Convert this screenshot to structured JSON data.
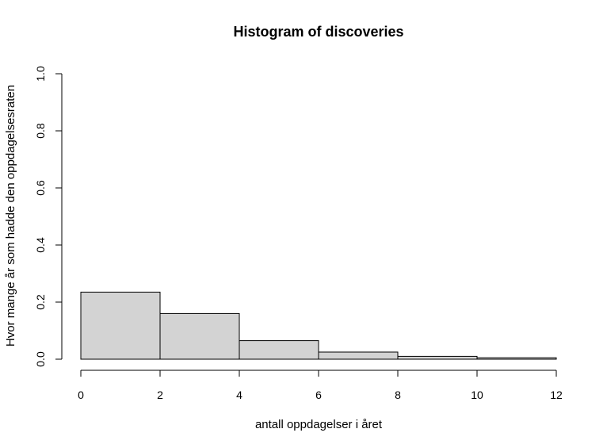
{
  "chart_data": {
    "type": "bar",
    "title": "Histogram of discoveries",
    "xlabel": "antall oppdagelser i året",
    "ylabel": "Hvor mange år som hadde den oppdagelsesraten",
    "bin_edges": [
      0,
      2,
      4,
      6,
      8,
      10,
      12
    ],
    "values": [
      0.235,
      0.16,
      0.065,
      0.025,
      0.01,
      0.005
    ],
    "xlim": [
      0,
      12
    ],
    "ylim": [
      0,
      1
    ],
    "x_ticks": [
      "0",
      "2",
      "4",
      "6",
      "8",
      "10",
      "12"
    ],
    "y_ticks": [
      "0.0",
      "0.2",
      "0.4",
      "0.6",
      "0.8",
      "1.0"
    ],
    "bar_color": "#d3d3d3",
    "grid": false
  }
}
